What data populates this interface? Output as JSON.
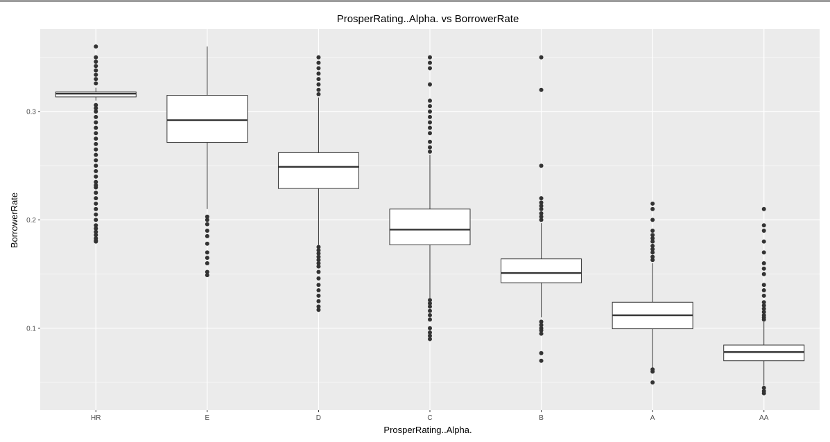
{
  "chart_data": {
    "type": "boxplot",
    "title": "ProsperRating..Alpha. vs BorrowerRate",
    "xlabel": "ProsperRating..Alpha.",
    "ylabel": "BorrowerRate",
    "categories": [
      "HR",
      "E",
      "D",
      "C",
      "B",
      "A",
      "AA"
    ],
    "y_ticks": [
      0.1,
      0.2,
      0.3
    ],
    "y_tick_labels": [
      "0.1",
      "0.2",
      "0.3"
    ],
    "ylim": [
      0.025,
      0.375
    ],
    "grid": true,
    "legend": "none",
    "colors": {
      "panel": "#ebebeb",
      "grid": "#ffffff",
      "box_fill": "#ffffff",
      "box_stroke": "#333333",
      "outlier": "#333333"
    },
    "boxes": [
      {
        "category": "HR",
        "whisker_low": 0.31,
        "q1": 0.3135,
        "median": 0.3165,
        "q3": 0.318,
        "whisker_high": 0.322,
        "outliers": [
          0.18,
          0.181,
          0.183,
          0.186,
          0.189,
          0.192,
          0.195,
          0.2,
          0.205,
          0.21,
          0.215,
          0.22,
          0.225,
          0.23,
          0.232,
          0.235,
          0.24,
          0.245,
          0.25,
          0.255,
          0.26,
          0.265,
          0.27,
          0.275,
          0.28,
          0.285,
          0.29,
          0.295,
          0.3,
          0.303,
          0.306,
          0.326,
          0.33,
          0.334,
          0.338,
          0.342,
          0.346,
          0.35,
          0.36
        ]
      },
      {
        "category": "E",
        "whisker_low": 0.21,
        "q1": 0.2715,
        "median": 0.292,
        "q3": 0.315,
        "whisker_high": 0.36,
        "outliers": [
          0.149,
          0.152,
          0.16,
          0.165,
          0.17,
          0.178,
          0.185,
          0.19,
          0.196,
          0.2,
          0.203
        ]
      },
      {
        "category": "D",
        "whisker_low": 0.177,
        "q1": 0.229,
        "median": 0.249,
        "q3": 0.262,
        "whisker_high": 0.313,
        "outliers": [
          0.117,
          0.12,
          0.125,
          0.13,
          0.135,
          0.14,
          0.146,
          0.152,
          0.157,
          0.16,
          0.163,
          0.166,
          0.169,
          0.172,
          0.175,
          0.316,
          0.32,
          0.325,
          0.33,
          0.335,
          0.34,
          0.345,
          0.35
        ]
      },
      {
        "category": "C",
        "whisker_low": 0.128,
        "q1": 0.177,
        "median": 0.191,
        "q3": 0.21,
        "whisker_high": 0.26,
        "outliers": [
          0.09,
          0.093,
          0.096,
          0.1,
          0.108,
          0.112,
          0.116,
          0.12,
          0.123,
          0.126,
          0.263,
          0.267,
          0.272,
          0.28,
          0.285,
          0.29,
          0.295,
          0.3,
          0.305,
          0.31,
          0.325,
          0.34,
          0.345,
          0.35
        ]
      },
      {
        "category": "B",
        "whisker_low": 0.11,
        "q1": 0.142,
        "median": 0.151,
        "q3": 0.164,
        "whisker_high": 0.197,
        "outliers": [
          0.07,
          0.077,
          0.095,
          0.098,
          0.1,
          0.103,
          0.106,
          0.2,
          0.203,
          0.206,
          0.21,
          0.213,
          0.216,
          0.22,
          0.25,
          0.32,
          0.35
        ]
      },
      {
        "category": "A",
        "whisker_low": 0.063,
        "q1": 0.0995,
        "median": 0.112,
        "q3": 0.124,
        "whisker_high": 0.16,
        "outliers": [
          0.05,
          0.06,
          0.062,
          0.163,
          0.166,
          0.17,
          0.173,
          0.176,
          0.18,
          0.183,
          0.186,
          0.19,
          0.2,
          0.21,
          0.215
        ]
      },
      {
        "category": "AA",
        "whisker_low": 0.047,
        "q1": 0.07,
        "median": 0.078,
        "q3": 0.0845,
        "whisker_high": 0.106,
        "outliers": [
          0.04,
          0.042,
          0.045,
          0.108,
          0.11,
          0.112,
          0.115,
          0.118,
          0.121,
          0.124,
          0.13,
          0.135,
          0.14,
          0.15,
          0.155,
          0.16,
          0.17,
          0.18,
          0.19,
          0.195,
          0.21
        ]
      }
    ]
  }
}
